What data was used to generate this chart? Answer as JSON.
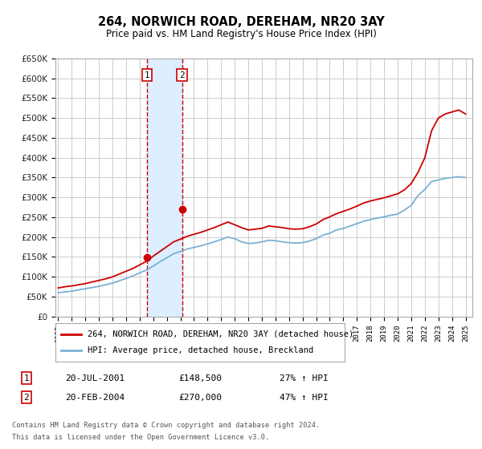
{
  "title": "264, NORWICH ROAD, DEREHAM, NR20 3AY",
  "subtitle": "Price paid vs. HM Land Registry's House Price Index (HPI)",
  "legend_line1": "264, NORWICH ROAD, DEREHAM, NR20 3AY (detached house)",
  "legend_line2": "HPI: Average price, detached house, Breckland",
  "sale1_date": "20-JUL-2001",
  "sale1_price": 148500,
  "sale1_price_str": "£148,500",
  "sale1_pct": "27% ↑ HPI",
  "sale2_date": "20-FEB-2004",
  "sale2_price": 270000,
  "sale2_price_str": "£270,000",
  "sale2_pct": "47% ↑ HPI",
  "footnote1": "Contains HM Land Registry data © Crown copyright and database right 2024.",
  "footnote2": "This data is licensed under the Open Government Licence v3.0.",
  "red_color": "#cc0000",
  "blue_color": "#7ab0d4",
  "shade_color": "#ddeeff",
  "background_color": "#ffffff",
  "grid_color": "#cccccc",
  "ylim": [
    0,
    650000
  ],
  "yticks": [
    0,
    50000,
    100000,
    150000,
    200000,
    250000,
    300000,
    350000,
    400000,
    450000,
    500000,
    550000,
    600000,
    650000
  ],
  "sale1_x": 2001.55,
  "sale2_x": 2004.12,
  "xmin": 1994.8,
  "xmax": 2025.5,
  "years_hpi": [
    1995.0,
    1995.5,
    1996.0,
    1996.5,
    1997.0,
    1997.5,
    1998.0,
    1998.5,
    1999.0,
    1999.5,
    2000.0,
    2000.5,
    2001.0,
    2001.5,
    2002.0,
    2002.5,
    2003.0,
    2003.5,
    2004.0,
    2004.5,
    2005.0,
    2005.5,
    2006.0,
    2006.5,
    2007.0,
    2007.5,
    2008.0,
    2008.5,
    2009.0,
    2009.5,
    2010.0,
    2010.5,
    2011.0,
    2011.5,
    2012.0,
    2012.5,
    2013.0,
    2013.5,
    2014.0,
    2014.5,
    2015.0,
    2015.5,
    2016.0,
    2016.5,
    2017.0,
    2017.5,
    2018.0,
    2018.5,
    2019.0,
    2019.5,
    2020.0,
    2020.5,
    2021.0,
    2021.5,
    2022.0,
    2022.5,
    2023.0,
    2023.5,
    2024.0,
    2024.5,
    2025.0
  ],
  "hpi_values": [
    60000,
    62000,
    64000,
    67000,
    70000,
    73000,
    76000,
    80000,
    84000,
    90000,
    96000,
    102000,
    110000,
    117000,
    127000,
    138000,
    148000,
    158000,
    164000,
    170000,
    174000,
    178000,
    183000,
    188000,
    194000,
    200000,
    196000,
    188000,
    184000,
    185000,
    188000,
    192000,
    191000,
    188000,
    186000,
    185000,
    186000,
    190000,
    196000,
    205000,
    210000,
    218000,
    222000,
    228000,
    234000,
    240000,
    244000,
    248000,
    251000,
    255000,
    258000,
    268000,
    280000,
    305000,
    320000,
    340000,
    344000,
    348000,
    350000,
    352000,
    350000
  ],
  "red_values": [
    72000,
    75000,
    77000,
    80000,
    83000,
    87000,
    91000,
    95000,
    100000,
    107000,
    114000,
    121000,
    130000,
    139000,
    152000,
    164000,
    176000,
    188000,
    195000,
    202000,
    207000,
    212000,
    218000,
    224000,
    231000,
    238000,
    231000,
    224000,
    218000,
    220000,
    222000,
    228000,
    226000,
    224000,
    221000,
    220000,
    221000,
    226000,
    233000,
    244000,
    251000,
    259000,
    265000,
    271000,
    278000,
    286000,
    291000,
    295000,
    299000,
    304000,
    309000,
    319000,
    335000,
    363000,
    400000,
    468000,
    500000,
    510000,
    515000,
    520000,
    510000
  ]
}
